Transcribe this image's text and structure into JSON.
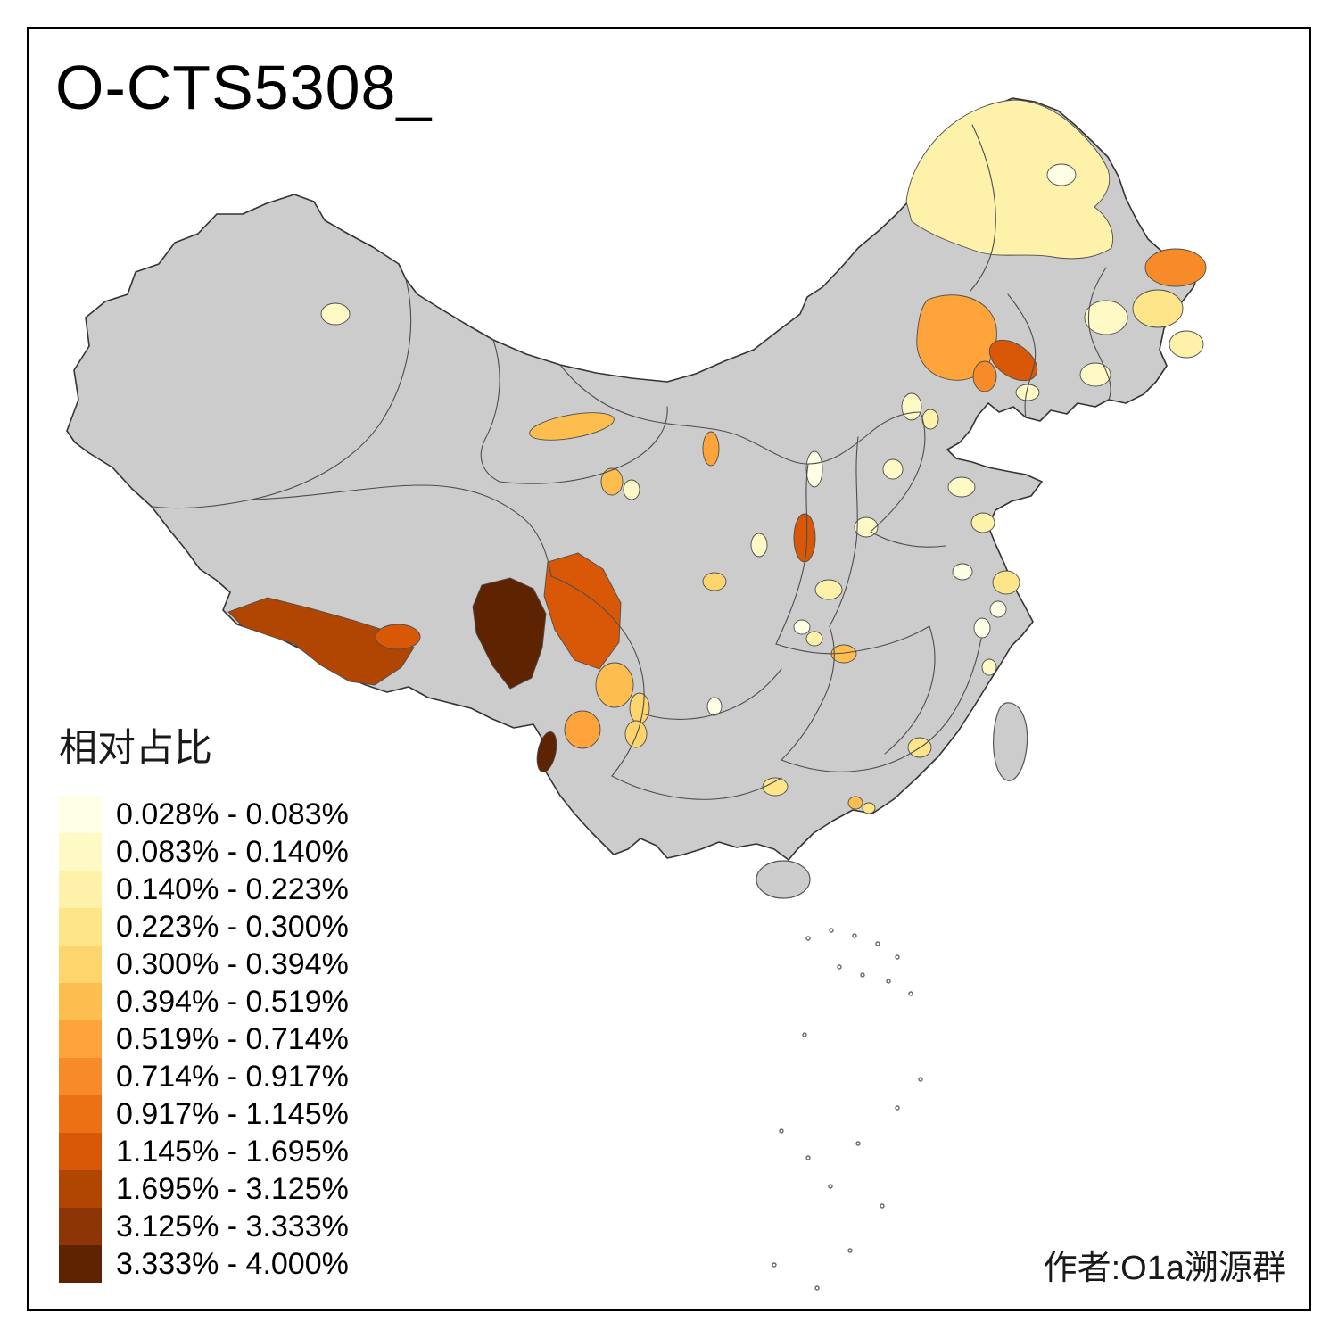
{
  "title": "O-CTS5308_",
  "credit": "作者:O1a溯源群",
  "legend": {
    "title": "相对占比",
    "classes": [
      {
        "label": "0.028% - 0.083%",
        "color": "#FFFFE5"
      },
      {
        "label": "0.083% - 0.140%",
        "color": "#FFF9C6"
      },
      {
        "label": "0.140% - 0.223%",
        "color": "#FEF1A9"
      },
      {
        "label": "0.223% - 0.300%",
        "color": "#FEE58A"
      },
      {
        "label": "0.300% - 0.394%",
        "color": "#FED56D"
      },
      {
        "label": "0.394% - 0.519%",
        "color": "#FEBE4F"
      },
      {
        "label": "0.519% - 0.714%",
        "color": "#FEA43B"
      },
      {
        "label": "0.714% - 0.917%",
        "color": "#F78B29"
      },
      {
        "label": "0.917% - 1.145%",
        "color": "#EC7014"
      },
      {
        "label": "1.145% - 1.695%",
        "color": "#D85807"
      },
      {
        "label": "1.695% - 3.125%",
        "color": "#B14502"
      },
      {
        "label": "3.125% - 3.333%",
        "color": "#8D3504"
      },
      {
        "label": "3.333% - 4.000%",
        "color": "#5E2402"
      }
    ]
  },
  "map": {
    "base_fill": "#CCCCCC",
    "border_color": "#4D4D4D",
    "outline_color": "#333333",
    "background": "#FFFFFF",
    "patches": [
      {
        "id": "northeast-hulunbuir",
        "class_index": 3
      },
      {
        "id": "northeast-hulunbuir-inner",
        "class_index": 1
      },
      {
        "id": "northeast-far-east",
        "class_index": 8
      },
      {
        "id": "northeast-jilin-a",
        "class_index": 4
      },
      {
        "id": "northeast-jilin-b",
        "class_index": 2
      },
      {
        "id": "northeast-jilin-c",
        "class_index": 3
      },
      {
        "id": "northeast-liaoning",
        "class_index": 2
      },
      {
        "id": "inner-mongolia-east",
        "class_index": 7
      },
      {
        "id": "inner-mongolia-southeast-dark",
        "class_index": 10
      },
      {
        "id": "inner-mongolia-southeast-mid",
        "class_index": 8
      },
      {
        "id": "north-beijing-a",
        "class_index": 2
      },
      {
        "id": "north-beijing-b",
        "class_index": 3
      },
      {
        "id": "liaodong-pale",
        "class_index": 2
      },
      {
        "id": "gansu-corridor",
        "class_index": 6
      },
      {
        "id": "qinghai-a",
        "class_index": 6
      },
      {
        "id": "qinghai-b",
        "class_index": 2
      },
      {
        "id": "ningxia-strip",
        "class_index": 7
      },
      {
        "id": "gansu-south",
        "class_index": 5
      },
      {
        "id": "shanxi-dark-strip",
        "class_index": 10
      },
      {
        "id": "shanxi-pale-strip",
        "class_index": 1
      },
      {
        "id": "shandong-a",
        "class_index": 2
      },
      {
        "id": "shandong-b",
        "class_index": 3
      },
      {
        "id": "hebei-pale",
        "class_index": 2
      },
      {
        "id": "henan-pale",
        "class_index": 2
      },
      {
        "id": "jiangsu-yellow",
        "class_index": 4
      },
      {
        "id": "anhui-pale",
        "class_index": 1
      },
      {
        "id": "central-yellow",
        "class_index": 3
      },
      {
        "id": "central-pale",
        "class_index": 1
      },
      {
        "id": "shaanxi-pale",
        "class_index": 2
      },
      {
        "id": "tibet-south-band",
        "class_index": 11
      },
      {
        "id": "tibet-southeast-red",
        "class_index": 10
      },
      {
        "id": "tibet-east-darkest",
        "class_index": 13
      },
      {
        "id": "west-sichuan-red",
        "class_index": 10
      },
      {
        "id": "southwest-sichuan-orange",
        "class_index": 6
      },
      {
        "id": "southwest-sichuan-yellow",
        "class_index": 5
      },
      {
        "id": "northwest-yunnan-dark",
        "class_index": 13
      },
      {
        "id": "west-yunnan-orange",
        "class_index": 7
      },
      {
        "id": "central-yunnan-yellow",
        "class_index": 5
      },
      {
        "id": "guizhou-pale",
        "class_index": 1
      },
      {
        "id": "hunan-orange",
        "class_index": 6
      },
      {
        "id": "hubei-pale",
        "class_index": 3
      },
      {
        "id": "guangxi-yellow",
        "class_index": 4
      },
      {
        "id": "jiangxi-yellow",
        "class_index": 4
      },
      {
        "id": "pearl-delta-a",
        "class_index": 6
      },
      {
        "id": "pearl-delta-b",
        "class_index": 4
      },
      {
        "id": "fujian-pale-a",
        "class_index": 1
      },
      {
        "id": "fujian-pale-b",
        "class_index": 2
      },
      {
        "id": "zhejiang-pale",
        "class_index": 1
      },
      {
        "id": "north-xinjiang-pale",
        "class_index": 2
      }
    ]
  }
}
